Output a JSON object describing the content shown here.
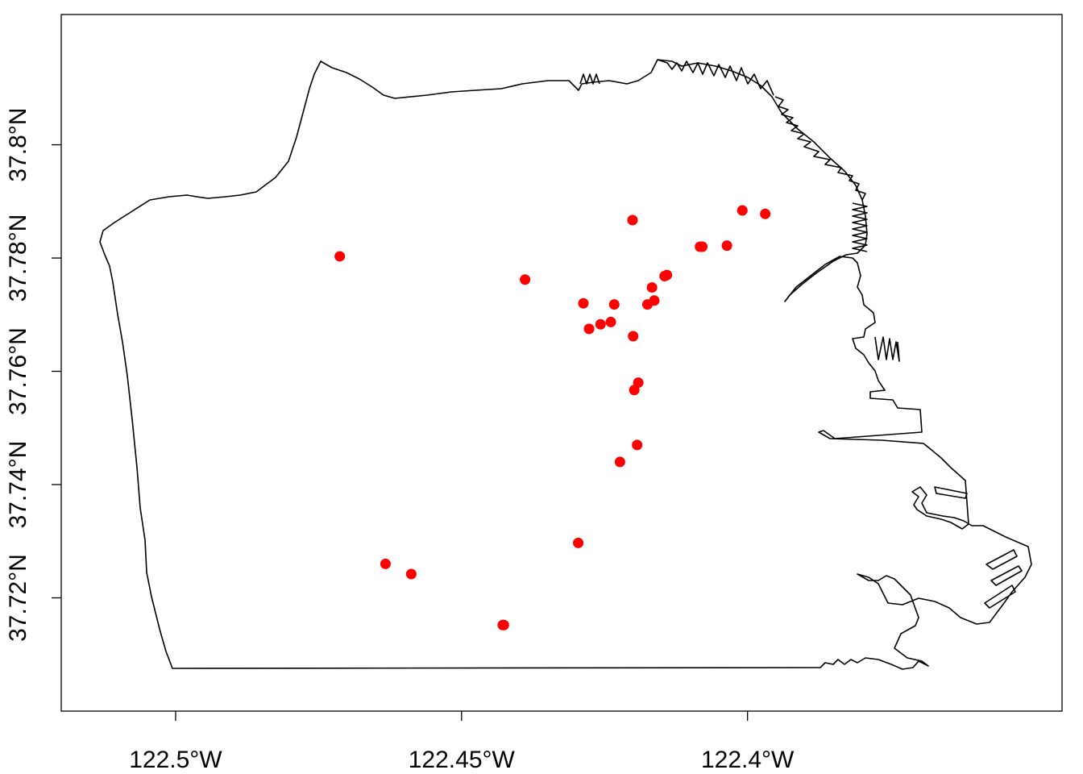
{
  "chart_data": {
    "type": "scatter",
    "title": "",
    "xlabel": "",
    "ylabel": "",
    "xlim": [
      -122.52,
      -122.345
    ],
    "ylim": [
      37.7,
      37.823
    ],
    "grid": false,
    "legend": "none",
    "colors": {
      "points": "#ff0000",
      "outline": "#000000",
      "frame": "#000000"
    },
    "x_ticks": [
      {
        "value": -122.5,
        "label": "122.5°W"
      },
      {
        "value": -122.45,
        "label": "122.45°W"
      },
      {
        "value": -122.4,
        "label": "122.4°W"
      }
    ],
    "y_ticks": [
      {
        "value": 37.72,
        "label": "37.72°N"
      },
      {
        "value": 37.74,
        "label": "37.74°N"
      },
      {
        "value": 37.76,
        "label": "37.76°N"
      },
      {
        "value": 37.78,
        "label": "37.78°N"
      },
      {
        "value": 37.8,
        "label": "37.8°N"
      }
    ],
    "series": [
      {
        "x": [
          -122.4713,
          -122.4389,
          -122.4201,
          -122.4009,
          -122.3969,
          -122.4079,
          -122.4083,
          -122.4036,
          -122.4145,
          -122.4141,
          -122.4167,
          -122.4163,
          -122.4175,
          -122.4287,
          -122.4233,
          -122.4239,
          -122.4257,
          -122.4277,
          -122.42,
          -122.4191,
          -122.4198,
          -122.4193,
          -122.4223,
          -122.4296,
          -122.4633,
          -122.4588,
          -122.4428,
          -122.4426
        ],
        "y": [
          37.7803,
          37.7762,
          37.7867,
          37.7884,
          37.7878,
          37.782,
          37.782,
          37.7822,
          37.7768,
          37.777,
          37.7748,
          37.7725,
          37.7718,
          37.772,
          37.7718,
          37.7687,
          37.7683,
          37.7675,
          37.7662,
          37.758,
          37.7567,
          37.747,
          37.744,
          37.7297,
          37.726,
          37.7242,
          37.7152,
          37.7152
        ]
      }
    ]
  }
}
